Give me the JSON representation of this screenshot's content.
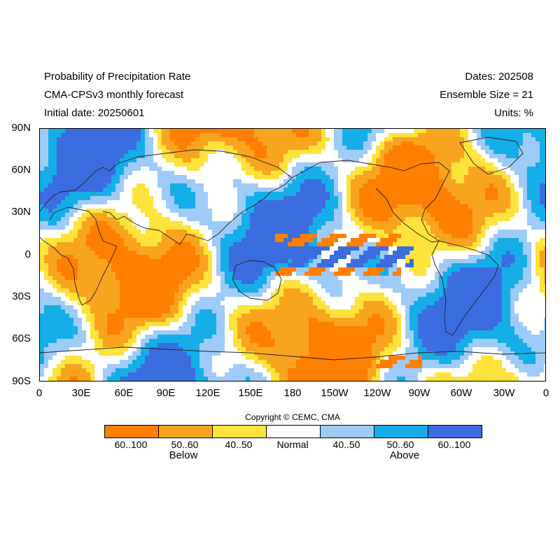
{
  "header": {
    "left": [
      "Probability of Precipitation Rate",
      "CMA-CPSv3 monthly forecast",
      "Initial date: 20250601"
    ],
    "right": [
      "Dates: 202508",
      "Ensemble Size = 21",
      "Units: %"
    ]
  },
  "map": {
    "projection": "cylindrical equidistant",
    "lat_range": [
      -90,
      90
    ],
    "lon_range": [
      0,
      360
    ],
    "lat_ticks": [
      "90N",
      "60N",
      "30N",
      "0",
      "30S",
      "60S",
      "90S"
    ],
    "lon_ticks": [
      "0",
      "30E",
      "60E",
      "90E",
      "120E",
      "150E",
      "180",
      "150W",
      "120W",
      "90W",
      "60W",
      "30W",
      "0"
    ],
    "coastlines": "black",
    "notable_patterns": [
      {
        "category": "Below 60..100",
        "lat": [
          -12,
          18
        ],
        "lon": [
          165,
          255
        ],
        "note": "tropical Pacific"
      },
      {
        "category": "Above 60..100",
        "lat": [
          -8,
          8
        ],
        "lon": [
          155,
          265
        ],
        "note": "equatorial Pacific band"
      },
      {
        "category": "Below 60..100",
        "lat": [
          -70,
          -80
        ],
        "lon": [
          180,
          270
        ],
        "note": "Antarctic coast"
      }
    ]
  },
  "copyright": "Copyright © CEMC, CMA",
  "legend": {
    "categories": [
      {
        "label": "60..100",
        "color": "#ff7f00"
      },
      {
        "label": "50..60",
        "color": "#f9a41e"
      },
      {
        "label": "40..50",
        "color": "#fde33b"
      },
      {
        "label": "Normal",
        "color": "#ffffff"
      },
      {
        "label": "40..50",
        "color": "#9fcbf8"
      },
      {
        "label": "50..60",
        "color": "#15aee9"
      },
      {
        "label": "60..100",
        "color": "#3b6de0"
      }
    ],
    "groups": {
      "below": "Below",
      "above": "Above"
    }
  }
}
